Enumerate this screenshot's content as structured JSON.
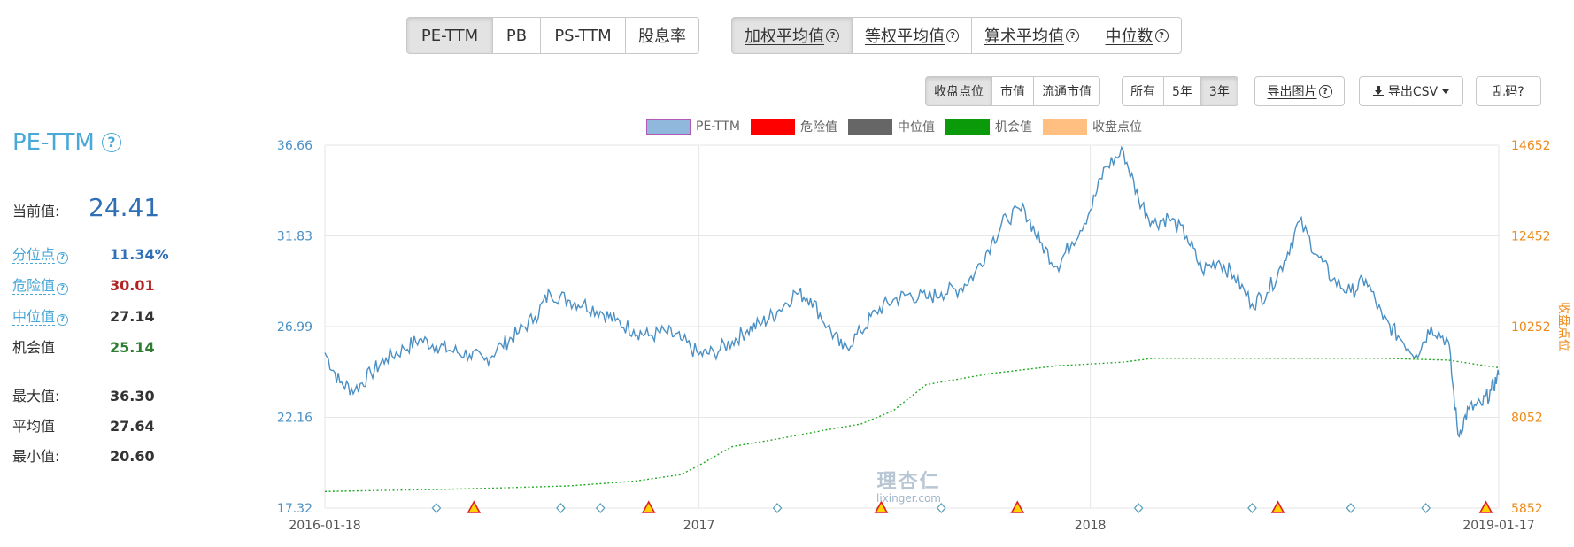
{
  "metric_tabs": [
    "PE-TTM",
    "PB",
    "PS-TTM",
    "股息率"
  ],
  "avg_tabs": [
    "加权平均值",
    "等权平均值",
    "算术平均值",
    "中位数"
  ],
  "chart_type_tabs": [
    "收盘点位",
    "市值",
    "流通市值"
  ],
  "range_tabs": [
    "所有",
    "5年",
    "3年"
  ],
  "actions": {
    "export_image": "导出图片",
    "export_csv": "导出CSV",
    "garbled": "乱码?"
  },
  "panel": {
    "title": "PE-TTM",
    "current_label": "当前值:",
    "current_value": "24.41",
    "stats": [
      {
        "label": "分位点",
        "value": "11.34%",
        "color": "#2f6fb5",
        "link": true
      },
      {
        "label": "危险值",
        "value": "30.01",
        "color": "#b22222",
        "link": true
      },
      {
        "label": "中位值",
        "value": "27.14",
        "color": "#333333",
        "link": true
      },
      {
        "label": "机会值",
        "value": "25.14",
        "color": "#2e7d32",
        "link": false
      },
      {
        "label": "最大值:",
        "value": "36.30",
        "color": "#333333",
        "link": false
      },
      {
        "label": "平均值",
        "value": "27.64",
        "color": "#333333",
        "link": false
      },
      {
        "label": "最小值:",
        "value": "20.60",
        "color": "#333333",
        "link": false
      }
    ]
  },
  "watermark": {
    "cn": "理杏仁",
    "en": "lixinger.com"
  },
  "chart_data": {
    "type": "line",
    "legend": [
      {
        "name": "PE-TTM",
        "color": "#90b8dc",
        "border": "#b05ab8",
        "disabled": false
      },
      {
        "name": "危险值",
        "color": "#ff0000",
        "disabled": true
      },
      {
        "name": "中位值",
        "color": "#666666",
        "disabled": true
      },
      {
        "name": "机会值",
        "color": "#0a9a0a",
        "disabled": true
      },
      {
        "name": "收盘点位",
        "color": "#ffbf80",
        "disabled": true
      }
    ],
    "x_range": [
      "2016-01-18",
      "2019-01-17"
    ],
    "x_ticks": [
      "2016-01-18",
      "2017",
      "2018",
      "2019-01-17"
    ],
    "x_tick_dates": [
      "2016-01-18",
      "2017-01-01",
      "2018-01-01",
      "2019-01-17"
    ],
    "y_left": {
      "min": 17.32,
      "max": 36.66,
      "ticks": [
        "36.66",
        "31.83",
        "26.99",
        "22.16",
        "17.32"
      ]
    },
    "y_right": {
      "label": "收盘点位",
      "min": 5852,
      "max": 14652,
      "ticks": [
        "14652",
        "12452",
        "10252",
        "8052",
        "5852"
      ]
    },
    "colors": {
      "pe": "#4a90c4",
      "opportunity": "#22aa22",
      "left_axis": "#4a90c4",
      "right_axis": "#ee8a1a"
    },
    "series": [
      {
        "name": "PE-TTM",
        "points": [
          [
            "2016-01-18",
            25.6
          ],
          [
            "2016-02-01",
            24.0
          ],
          [
            "2016-02-15",
            23.6
          ],
          [
            "2016-03-01",
            24.5
          ],
          [
            "2016-03-15",
            25.3
          ],
          [
            "2016-04-01",
            25.8
          ],
          [
            "2016-04-15",
            26.3
          ],
          [
            "2016-05-01",
            26.0
          ],
          [
            "2016-05-15",
            25.7
          ],
          [
            "2016-06-01",
            25.5
          ],
          [
            "2016-06-15",
            25.2
          ],
          [
            "2016-07-01",
            26.0
          ],
          [
            "2016-07-15",
            26.6
          ],
          [
            "2016-08-01",
            27.5
          ],
          [
            "2016-08-15",
            28.8
          ],
          [
            "2016-09-01",
            28.4
          ],
          [
            "2016-09-15",
            28.2
          ],
          [
            "2016-10-01",
            27.8
          ],
          [
            "2016-10-15",
            27.3
          ],
          [
            "2016-11-01",
            26.8
          ],
          [
            "2016-11-15",
            26.5
          ],
          [
            "2016-12-01",
            26.7
          ],
          [
            "2016-12-15",
            26.3
          ],
          [
            "2017-01-01",
            25.5
          ],
          [
            "2017-01-15",
            25.6
          ],
          [
            "2017-02-01",
            26.2
          ],
          [
            "2017-02-15",
            26.8
          ],
          [
            "2017-03-01",
            27.2
          ],
          [
            "2017-03-15",
            27.8
          ],
          [
            "2017-04-01",
            28.8
          ],
          [
            "2017-04-15",
            28.5
          ],
          [
            "2017-05-01",
            27.0
          ],
          [
            "2017-05-15",
            25.8
          ],
          [
            "2017-06-01",
            26.7
          ],
          [
            "2017-06-15",
            27.8
          ],
          [
            "2017-07-01",
            28.4
          ],
          [
            "2017-07-15",
            28.7
          ],
          [
            "2017-08-01",
            28.5
          ],
          [
            "2017-08-15",
            28.8
          ],
          [
            "2017-09-01",
            29.0
          ],
          [
            "2017-09-15",
            29.8
          ],
          [
            "2017-10-01",
            31.5
          ],
          [
            "2017-10-15",
            32.8
          ],
          [
            "2017-11-01",
            33.2
          ],
          [
            "2017-11-15",
            31.5
          ],
          [
            "2017-12-01",
            30.2
          ],
          [
            "2017-12-15",
            31.5
          ],
          [
            "2018-01-01",
            33.2
          ],
          [
            "2018-01-15",
            35.5
          ],
          [
            "2018-02-01",
            36.3
          ],
          [
            "2018-02-15",
            33.8
          ],
          [
            "2018-03-01",
            32.5
          ],
          [
            "2018-03-15",
            32.8
          ],
          [
            "2018-04-01",
            31.8
          ],
          [
            "2018-04-15",
            30.0
          ],
          [
            "2018-05-01",
            30.5
          ],
          [
            "2018-05-15",
            29.7
          ],
          [
            "2018-06-01",
            28.2
          ],
          [
            "2018-06-15",
            28.8
          ],
          [
            "2018-07-01",
            30.5
          ],
          [
            "2018-07-15",
            32.6
          ],
          [
            "2018-08-01",
            30.8
          ],
          [
            "2018-08-15",
            29.5
          ],
          [
            "2018-09-01",
            28.8
          ],
          [
            "2018-09-15",
            29.5
          ],
          [
            "2018-10-01",
            27.4
          ],
          [
            "2018-10-15",
            26.5
          ],
          [
            "2018-11-01",
            25.5
          ],
          [
            "2018-11-15",
            27.0
          ],
          [
            "2018-12-01",
            26.2
          ],
          [
            "2018-12-10",
            21.2
          ],
          [
            "2018-12-20",
            22.6
          ],
          [
            "2019-01-01",
            22.8
          ],
          [
            "2019-01-10",
            23.6
          ],
          [
            "2019-01-17",
            24.4
          ]
        ]
      },
      {
        "name": "机会值",
        "points": [
          [
            "2016-01-18",
            18.2
          ],
          [
            "2016-06-01",
            18.35
          ],
          [
            "2016-09-01",
            18.5
          ],
          [
            "2016-11-01",
            18.75
          ],
          [
            "2016-12-15",
            19.1
          ],
          [
            "2017-01-01",
            19.6
          ],
          [
            "2017-02-01",
            20.6
          ],
          [
            "2017-03-15",
            21.0
          ],
          [
            "2017-05-01",
            21.5
          ],
          [
            "2017-06-01",
            21.8
          ],
          [
            "2017-07-01",
            22.5
          ],
          [
            "2017-08-01",
            23.9
          ],
          [
            "2017-09-01",
            24.2
          ],
          [
            "2017-10-01",
            24.5
          ],
          [
            "2017-11-01",
            24.7
          ],
          [
            "2017-12-01",
            24.9
          ],
          [
            "2018-01-01",
            25.0
          ],
          [
            "2018-02-01",
            25.1
          ],
          [
            "2018-03-01",
            25.3
          ],
          [
            "2018-05-01",
            25.3
          ],
          [
            "2018-08-01",
            25.3
          ],
          [
            "2018-10-01",
            25.3
          ],
          [
            "2018-12-01",
            25.2
          ],
          [
            "2019-01-17",
            24.8
          ]
        ]
      }
    ],
    "markers": {
      "diamonds": [
        "2016-05-01",
        "2016-08-25",
        "2016-10-01",
        "2017-03-15",
        "2017-06-20",
        "2017-08-15",
        "2018-02-15",
        "2018-06-01",
        "2018-09-01",
        "2018-11-10"
      ],
      "triangles": [
        "2016-06-05",
        "2016-11-15",
        "2017-06-20",
        "2017-10-25",
        "2018-06-25",
        "2019-01-05"
      ]
    }
  }
}
